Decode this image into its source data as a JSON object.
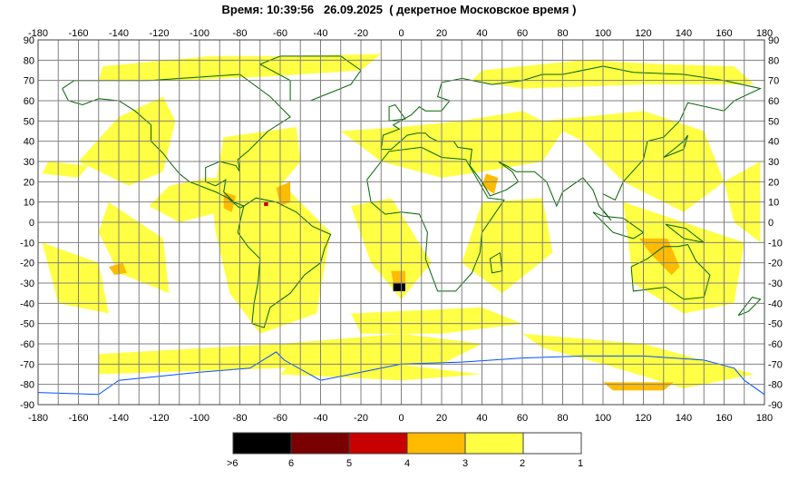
{
  "header": {
    "title": "Время: 10:39:56   26.09.2025  ( декретное Московское время )"
  },
  "axes": {
    "lon_ticks": [
      "-180",
      "-160",
      "-140",
      "-120",
      "-100",
      "-80",
      "-60",
      "-40",
      "-20",
      "0",
      "20",
      "40",
      "60",
      "80",
      "100",
      "120",
      "140",
      "160",
      "180"
    ],
    "lat_ticks": [
      "90",
      "80",
      "70",
      "60",
      "50",
      "40",
      "30",
      "20",
      "10",
      "0",
      "-10",
      "-20",
      "-30",
      "-40",
      "-50",
      "-60",
      "-70",
      "-80",
      "-90"
    ],
    "lon_range": [
      -180,
      180
    ],
    "lat_range": [
      -90,
      90
    ],
    "grid": true
  },
  "legend": {
    "labels": [
      ">6",
      "6",
      "5",
      "4",
      "3",
      "2",
      "1"
    ],
    "swatch_colors": [
      "#000000",
      "#7a0000",
      "#c80000",
      "#ffbb00",
      "#ffff44",
      "#ffffff"
    ]
  },
  "colors": {
    "background": "#ffffff",
    "grid": "#808080",
    "coastline": "#006400",
    "antarctic_coast": "#0050ff",
    "level_2_3": "#ffff44",
    "level_3_4": "#ffbb00"
  }
}
